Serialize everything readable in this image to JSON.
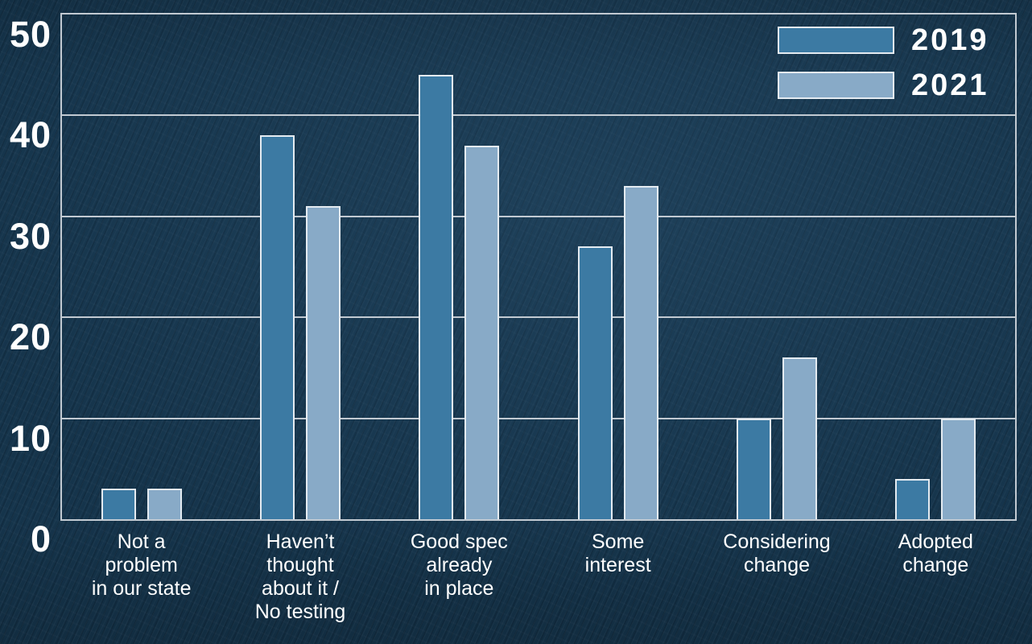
{
  "chart_data": {
    "type": "bar",
    "title": "",
    "xlabel": "",
    "ylabel": "",
    "categories": [
      "Not a\nproblem\nin our state",
      "Haven’t\nthought\nabout it /\nNo testing",
      "Good spec\nalready\nin place",
      "Some\ninterest",
      "Considering\nchange",
      "Adopted\nchange"
    ],
    "series": [
      {
        "name": "2019",
        "color": "#3c7aa3",
        "values": [
          3,
          38,
          44,
          27,
          10,
          4
        ]
      },
      {
        "name": "2021",
        "color": "#88aac7",
        "values": [
          3,
          31,
          37,
          33,
          16,
          10
        ]
      }
    ],
    "ylim": [
      0,
      50
    ],
    "yticks": [
      0,
      10,
      20,
      30,
      40,
      50
    ],
    "ytick_labels": [
      "0",
      "10",
      "20",
      "30",
      "40",
      "50"
    ],
    "grid": true,
    "legend_position": "top-right"
  },
  "colors": {
    "background": "#15344b",
    "grid_frame": "#c2cad2",
    "bar_border": "#e4ebf1",
    "text": "#ffffff",
    "series_2019": "#3c7aa3",
    "series_2021": "#88aac7"
  }
}
